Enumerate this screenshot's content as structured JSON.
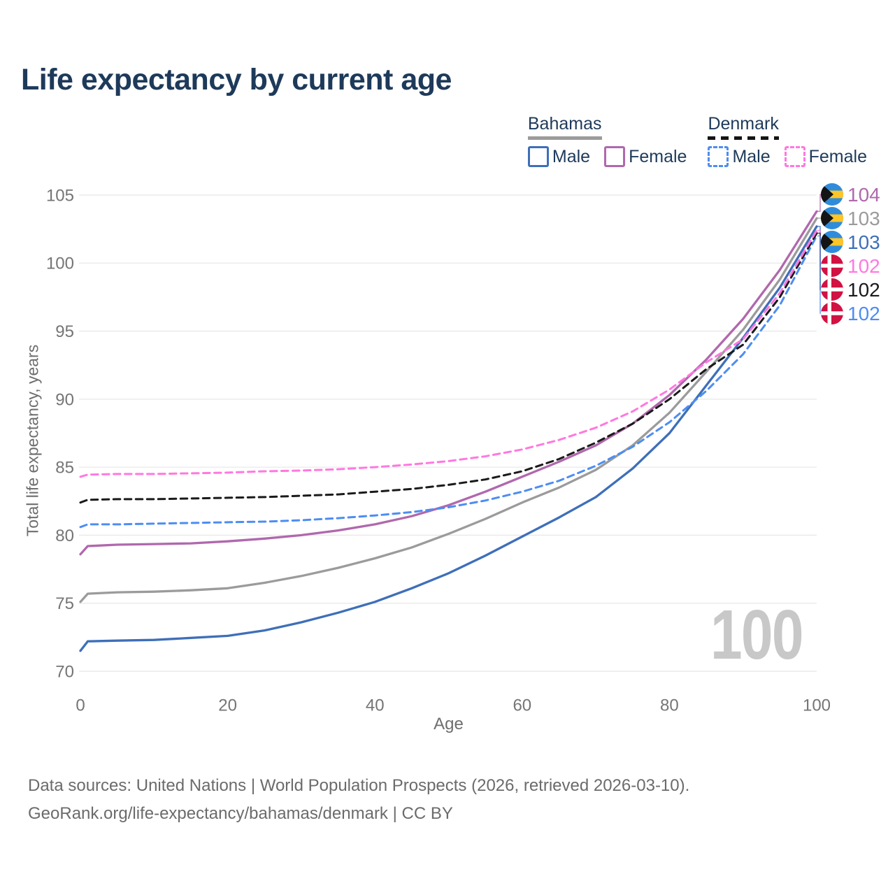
{
  "header": {
    "title": "Life expectancy by current age"
  },
  "legend": {
    "groups": [
      {
        "country": "Bahamas",
        "line_style": "solid",
        "rule_color": "#9b9b9b",
        "items": [
          {
            "label": "Male",
            "color": "#3e6fb8",
            "dashed": false
          },
          {
            "label": "Female",
            "color": "#b068ad",
            "dashed": false
          }
        ]
      },
      {
        "country": "Denmark",
        "line_style": "dashed",
        "rule_color": "#141414",
        "items": [
          {
            "label": "Male",
            "color": "#4d8df2",
            "dashed": true
          },
          {
            "label": "Female",
            "color": "#ff78e0",
            "dashed": true
          }
        ]
      }
    ]
  },
  "watermark_age": "100",
  "chart_data": {
    "type": "line",
    "title": "Life expectancy by current age",
    "xlabel": "Age",
    "ylabel": "Total life expectancy, years",
    "xlim": [
      0,
      100
    ],
    "ylim": [
      70,
      105
    ],
    "xticks": [
      0,
      20,
      40,
      60,
      80,
      100
    ],
    "yticks": [
      70,
      75,
      80,
      85,
      90,
      95,
      100,
      105
    ],
    "grid": "horizontal",
    "legend_position": "top-right",
    "x": [
      0,
      1,
      5,
      10,
      15,
      20,
      25,
      30,
      35,
      40,
      45,
      50,
      55,
      60,
      65,
      70,
      75,
      80,
      85,
      90,
      95,
      100
    ],
    "series": [
      {
        "name": "Bahamas Male",
        "country": "Bahamas",
        "sex": "Male",
        "color": "#3e6fb8",
        "dashed": false,
        "end_label": "103",
        "values": [
          71.5,
          72.2,
          72.25,
          72.3,
          72.45,
          72.6,
          73.0,
          73.6,
          74.3,
          75.1,
          76.1,
          77.2,
          78.5,
          79.9,
          81.3,
          82.8,
          84.9,
          87.5,
          91.0,
          94.5,
          98.2,
          102.7
        ]
      },
      {
        "name": "Bahamas Female",
        "country": "Bahamas",
        "sex": "Female",
        "color": "#b068ad",
        "dashed": false,
        "end_label": "104",
        "values": [
          78.6,
          79.2,
          79.3,
          79.35,
          79.4,
          79.55,
          79.75,
          80.0,
          80.35,
          80.8,
          81.4,
          82.2,
          83.2,
          84.3,
          85.4,
          86.6,
          88.2,
          90.3,
          92.9,
          95.9,
          99.5,
          103.8
        ]
      },
      {
        "name": "Bahamas (both sexes)",
        "country": "Bahamas",
        "sex": "Total",
        "color": "#9b9b9b",
        "dashed": false,
        "end_label": "103",
        "values": [
          75.1,
          75.7,
          75.8,
          75.85,
          75.95,
          76.1,
          76.5,
          77.0,
          77.6,
          78.3,
          79.1,
          80.1,
          81.2,
          82.4,
          83.5,
          84.8,
          86.6,
          89.0,
          92.0,
          95.1,
          98.8,
          103.3
        ]
      },
      {
        "name": "Denmark Male",
        "country": "Denmark",
        "sex": "Male",
        "color": "#4d8df2",
        "dashed": true,
        "end_label": "102",
        "values": [
          80.6,
          80.8,
          80.8,
          80.85,
          80.9,
          80.95,
          81.0,
          81.1,
          81.25,
          81.45,
          81.7,
          82.05,
          82.55,
          83.2,
          84.0,
          85.1,
          86.5,
          88.3,
          90.6,
          93.3,
          96.9,
          102.0
        ]
      },
      {
        "name": "Denmark (both sexes)",
        "country": "Denmark",
        "sex": "Total",
        "color": "#1a1a1a",
        "dashed": true,
        "end_label": "102",
        "values": [
          82.4,
          82.6,
          82.65,
          82.65,
          82.7,
          82.75,
          82.8,
          82.9,
          83.0,
          83.2,
          83.4,
          83.7,
          84.1,
          84.7,
          85.6,
          86.8,
          88.2,
          90.0,
          92.2,
          94.0,
          97.5,
          102.2
        ]
      },
      {
        "name": "Denmark Female",
        "country": "Denmark",
        "sex": "Female",
        "color": "#ff78e0",
        "dashed": true,
        "end_label": "102",
        "values": [
          84.3,
          84.45,
          84.5,
          84.5,
          84.55,
          84.6,
          84.7,
          84.75,
          84.85,
          85.0,
          85.2,
          85.45,
          85.8,
          86.3,
          87.0,
          87.9,
          89.1,
          90.7,
          92.7,
          94.4,
          97.8,
          102.4
        ]
      }
    ],
    "flag_colors": {
      "bahamas_aqua": "#2f8cdb",
      "bahamas_gold": "#ffc526",
      "bahamas_black": "#141414",
      "denmark_red": "#d11242",
      "denmark_white": "#ffffff"
    },
    "grid_color": "#e8e8e8",
    "tick_color": "#757575"
  },
  "footer": {
    "line1": "Data sources: United Nations | World Population Prospects (2026, retrieved 2026-03-10).",
    "line2": "GeoRank.org/life-expectancy/bahamas/denmark | CC BY"
  }
}
